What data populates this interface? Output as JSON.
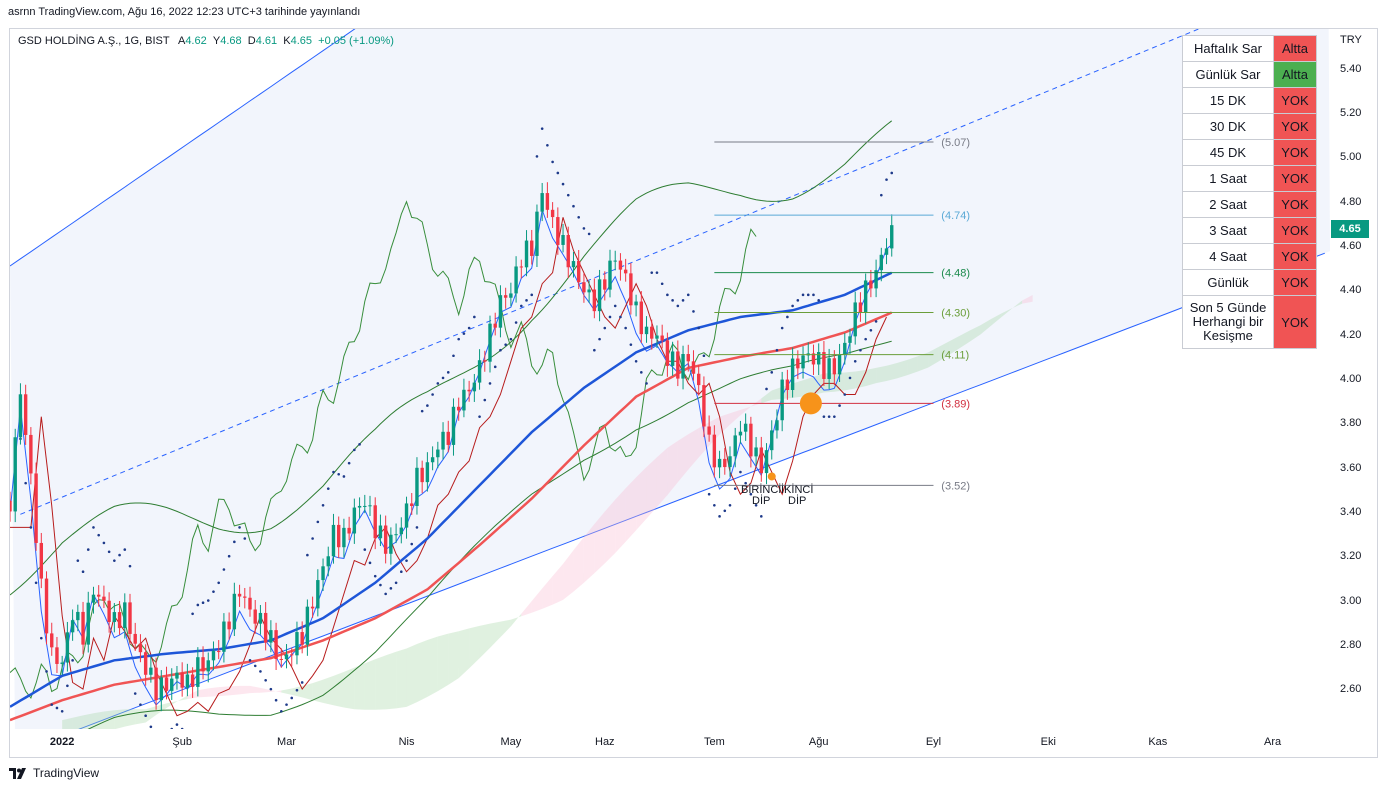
{
  "published": "asrnn TradingView.com, Ağu 16, 2022 12:23 UTC+3 tarihinde yayınlandı",
  "legend": {
    "symbol": "GSD HOLDİNG A.Ş., 1G, BIST",
    "a_label": "A",
    "a_value": "4.62",
    "y_label": "Y",
    "y_value": "4.68",
    "d_label": "D",
    "d_value": "4.61",
    "k_label": "K",
    "k_value": "4.65",
    "change": "+0.05 (+1.09%)"
  },
  "currency": "TRY",
  "last_price": "4.65",
  "colors": {
    "up": "#089981",
    "down": "#f23645",
    "channel": "#2962ff",
    "ema_slow": "#1e56d8",
    "ema_fast": "#f05454",
    "kumo_green": "#a5d6a7",
    "kumo_red": "#f8bbd0",
    "bb": "#2e7d32",
    "lagging": "#388e3c",
    "tenkan": "#2962ff",
    "kijun": "#b71c1c",
    "fib_grey": "#787b86",
    "fib_blue": "#5aa9d6",
    "fib_green": "#1b8a4c",
    "fib_olive": "#6a9e3a",
    "fib_red": "#d23040",
    "marker_big": "#f7931a",
    "marker_small": "#f7931a"
  },
  "signal_table": {
    "rows": [
      {
        "label": "Haftalık Sar",
        "value": "Altta",
        "status": "red"
      },
      {
        "label": "Günlük Sar",
        "value": "Altta",
        "status": "green"
      },
      {
        "label": "15 DK",
        "value": "YOK",
        "status": "red"
      },
      {
        "label": "30 DK",
        "value": "YOK",
        "status": "red"
      },
      {
        "label": "45 DK",
        "value": "YOK",
        "status": "red"
      },
      {
        "label": "1 Saat",
        "value": "YOK",
        "status": "red"
      },
      {
        "label": "2 Saat",
        "value": "YOK",
        "status": "red"
      },
      {
        "label": "3 Saat",
        "value": "YOK",
        "status": "red"
      },
      {
        "label": "4 Saat",
        "value": "YOK",
        "status": "red"
      },
      {
        "label": "Günlük",
        "value": "YOK",
        "status": "red"
      },
      {
        "label": "Son 5 Günde Herhangi bir Kesişme",
        "value": "YOK",
        "status": "red"
      }
    ]
  },
  "annotations": {
    "first_dip": "BİRİNCİ DİP",
    "first_dip_l1": "BİRİNCİ",
    "first_dip_l2": "DİP",
    "second_dip_l1": "İKİNCİ",
    "second_dip_l2": "DİP"
  },
  "branding": "TradingView",
  "chart_data": {
    "type": "candlestick",
    "title": "GSD HOLDİNG A.Ş., 1G, BIST",
    "y_ticks": [
      "5.40",
      "5.20",
      "5.00",
      "4.80",
      "4.60",
      "4.40",
      "4.20",
      "4.00",
      "3.80",
      "3.60",
      "3.40",
      "3.20",
      "3.00",
      "2.80",
      "2.60"
    ],
    "x_ticks": [
      {
        "label": "2022",
        "day": 0,
        "bold": true
      },
      {
        "label": "Şub",
        "day": 23
      },
      {
        "label": "Mar",
        "day": 43
      },
      {
        "label": "Nis",
        "day": 66
      },
      {
        "label": "May",
        "day": 86
      },
      {
        "label": "Haz",
        "day": 104
      },
      {
        "label": "Tem",
        "day": 125
      },
      {
        "label": "Ağu",
        "day": 145
      },
      {
        "label": "Eyl",
        "day": 167
      },
      {
        "label": "Eki",
        "day": 189
      },
      {
        "label": "Kas",
        "day": 210
      },
      {
        "label": "Ara",
        "day": 232
      }
    ],
    "ylim": [
      2.42,
      5.58
    ],
    "day_range": [
      -10,
      243
    ],
    "fib_levels": [
      {
        "value": 5.07,
        "label": "(5.07)",
        "color": "#787b86"
      },
      {
        "value": 4.74,
        "label": "(4.74)",
        "color": "#5aa9d6"
      },
      {
        "value": 4.48,
        "label": "(4.48)",
        "color": "#1b8a4c"
      },
      {
        "value": 4.3,
        "label": "(4.30)",
        "color": "#6a9e3a"
      },
      {
        "value": 4.11,
        "label": "(4.11)",
        "color": "#6a9e3a"
      },
      {
        "value": 3.89,
        "label": "(3.89)",
        "color": "#d23040"
      },
      {
        "value": 3.52,
        "label": "(3.52)",
        "color": "#787b86"
      }
    ],
    "close_path": [
      [
        -10,
        3.45
      ],
      [
        -8,
        3.95
      ],
      [
        -6,
        3.55
      ],
      [
        -4,
        3.05
      ],
      [
        -2,
        2.75
      ],
      [
        0,
        2.72
      ],
      [
        2,
        2.95
      ],
      [
        4,
        2.85
      ],
      [
        6,
        3.05
      ],
      [
        8,
        2.98
      ],
      [
        10,
        2.9
      ],
      [
        12,
        2.95
      ],
      [
        14,
        2.8
      ],
      [
        16,
        2.7
      ],
      [
        18,
        2.6
      ],
      [
        20,
        2.62
      ],
      [
        22,
        2.66
      ],
      [
        24,
        2.62
      ],
      [
        26,
        2.7
      ],
      [
        28,
        2.72
      ],
      [
        30,
        2.8
      ],
      [
        32,
        2.92
      ],
      [
        34,
        3.05
      ],
      [
        36,
        2.95
      ],
      [
        38,
        2.9
      ],
      [
        40,
        2.82
      ],
      [
        42,
        2.72
      ],
      [
        44,
        2.78
      ],
      [
        46,
        2.85
      ],
      [
        48,
        3.0
      ],
      [
        50,
        3.15
      ],
      [
        52,
        3.3
      ],
      [
        54,
        3.28
      ],
      [
        56,
        3.4
      ],
      [
        58,
        3.45
      ],
      [
        60,
        3.33
      ],
      [
        62,
        3.25
      ],
      [
        64,
        3.3
      ],
      [
        66,
        3.4
      ],
      [
        68,
        3.55
      ],
      [
        70,
        3.6
      ],
      [
        72,
        3.7
      ],
      [
        74,
        3.75
      ],
      [
        76,
        3.9
      ],
      [
        78,
        3.95
      ],
      [
        80,
        4.05
      ],
      [
        82,
        4.2
      ],
      [
        84,
        4.35
      ],
      [
        86,
        4.4
      ],
      [
        88,
        4.55
      ],
      [
        90,
        4.6
      ],
      [
        92,
        4.85
      ],
      [
        94,
        4.7
      ],
      [
        96,
        4.6
      ],
      [
        98,
        4.5
      ],
      [
        100,
        4.4
      ],
      [
        102,
        4.35
      ],
      [
        104,
        4.45
      ],
      [
        106,
        4.55
      ],
      [
        108,
        4.45
      ],
      [
        110,
        4.3
      ],
      [
        112,
        4.2
      ],
      [
        114,
        4.2
      ],
      [
        116,
        4.1
      ],
      [
        118,
        4.05
      ],
      [
        120,
        4.1
      ],
      [
        122,
        3.95
      ],
      [
        124,
        3.7
      ],
      [
        126,
        3.6
      ],
      [
        128,
        3.65
      ],
      [
        130,
        3.8
      ],
      [
        132,
        3.7
      ],
      [
        134,
        3.6
      ],
      [
        136,
        3.75
      ],
      [
        138,
        3.95
      ],
      [
        140,
        4.05
      ],
      [
        142,
        4.1
      ],
      [
        144,
        4.1
      ],
      [
        146,
        4.05
      ],
      [
        148,
        4.05
      ],
      [
        150,
        4.15
      ],
      [
        152,
        4.3
      ],
      [
        154,
        4.4
      ],
      [
        156,
        4.48
      ],
      [
        158,
        4.62
      ],
      [
        159,
        4.65
      ]
    ],
    "ema_slow_path": [
      [
        -10,
        2.52
      ],
      [
        0,
        2.66
      ],
      [
        10,
        2.73
      ],
      [
        20,
        2.76
      ],
      [
        30,
        2.78
      ],
      [
        40,
        2.82
      ],
      [
        50,
        2.92
      ],
      [
        60,
        3.08
      ],
      [
        70,
        3.28
      ],
      [
        80,
        3.52
      ],
      [
        90,
        3.76
      ],
      [
        100,
        3.96
      ],
      [
        110,
        4.12
      ],
      [
        120,
        4.22
      ],
      [
        130,
        4.28
      ],
      [
        140,
        4.31
      ],
      [
        150,
        4.38
      ],
      [
        159,
        4.48
      ]
    ],
    "ema_fast_path": [
      [
        -10,
        2.46
      ],
      [
        0,
        2.55
      ],
      [
        10,
        2.62
      ],
      [
        20,
        2.66
      ],
      [
        30,
        2.7
      ],
      [
        40,
        2.74
      ],
      [
        50,
        2.82
      ],
      [
        60,
        2.92
      ],
      [
        70,
        3.05
      ],
      [
        80,
        3.25
      ],
      [
        90,
        3.46
      ],
      [
        100,
        3.7
      ],
      [
        110,
        3.92
      ],
      [
        120,
        4.05
      ],
      [
        130,
        4.1
      ],
      [
        140,
        4.14
      ],
      [
        150,
        4.21
      ],
      [
        159,
        4.3
      ]
    ]
  }
}
